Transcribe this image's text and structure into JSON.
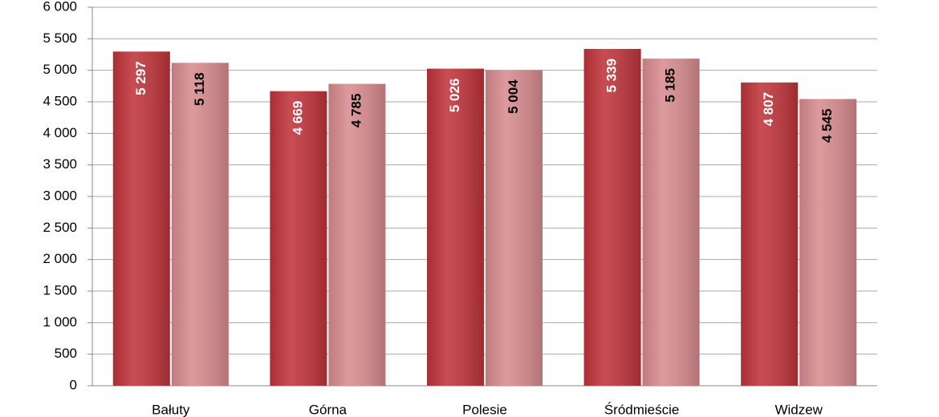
{
  "chart_data": {
    "type": "bar",
    "categories": [
      "Bałuty",
      "Górna",
      "Polesie",
      "Śródmieście",
      "Widzew"
    ],
    "series": [
      {
        "color": "#c0353b",
        "label_color": "#ffffff",
        "values": [
          5297,
          4669,
          5026,
          5339,
          4807
        ],
        "value_labels": [
          "5 297",
          "4 669",
          "5 026",
          "5 339",
          "4 807"
        ]
      },
      {
        "color": "#d98c90",
        "label_color": "#000000",
        "values": [
          5118,
          4785,
          5004,
          5185,
          4545
        ],
        "value_labels": [
          "5 118",
          "4 785",
          "5 004",
          "5 185",
          "4 545"
        ]
      }
    ],
    "ylim": [
      0,
      6000
    ],
    "yticks": [
      0,
      500,
      {
        "value": 1000,
        "label": "1 000"
      },
      {
        "value": 1500,
        "label": "1 500"
      },
      {
        "value": 2000,
        "label": "2 000"
      },
      {
        "value": 2500,
        "label": "2 500"
      },
      {
        "value": 3000,
        "label": "3 000"
      },
      {
        "value": 3500,
        "label": "3 500"
      },
      {
        "value": 4000,
        "label": "4 000"
      },
      {
        "value": 4500,
        "label": "4 500"
      },
      {
        "value": 5000,
        "label": "5 000"
      },
      {
        "value": 5500,
        "label": "5 500"
      },
      {
        "value": 6000,
        "label": "6 000"
      }
    ],
    "grid": true
  }
}
